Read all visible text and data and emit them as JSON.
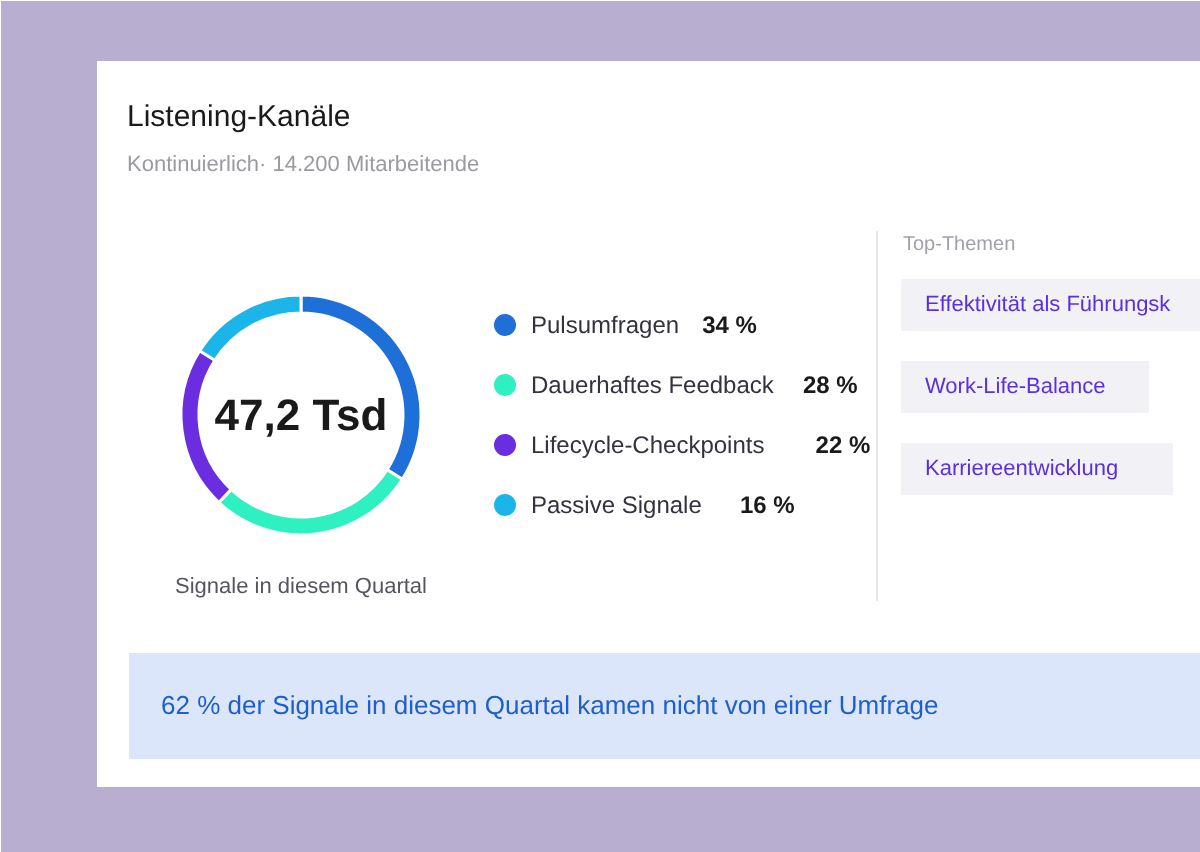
{
  "chart_data": {
    "type": "donut",
    "title": "Listening-Kanäle",
    "subtitle": "Kontinuierlich· 14.200 Mitarbeitende",
    "categories": [
      "Pulsumfragen",
      "Dauerhaftes Feedback",
      "Lifecycle-Checkpoints",
      "Passive Signale"
    ],
    "values": [
      34,
      28,
      22,
      16
    ],
    "colors": [
      "#1f6fd9",
      "#2ef0c0",
      "#6a2ee0",
      "#1cb5ea"
    ],
    "value_labels": [
      "34 %",
      "28 %",
      "22 %",
      "16 %"
    ],
    "legend": "right",
    "annotations": [
      "47,2 Tsd",
      "Signale in diesem Quartal",
      "Top-Themen",
      "Effektivität als Führungsk",
      "Work-Life-Balance",
      "Karriereentwicklung",
      "62 % der Signale in diesem Quartal kamen nicht von einer Umfrage"
    ]
  }
}
